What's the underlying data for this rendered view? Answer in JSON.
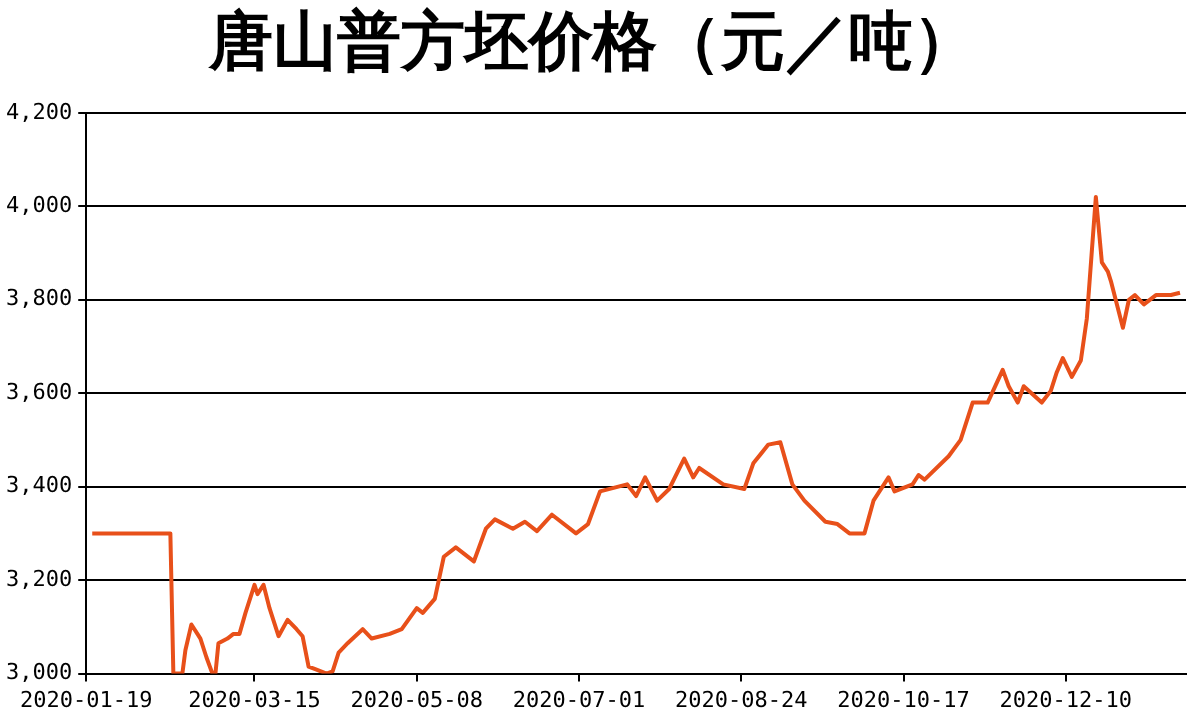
{
  "chart_data": {
    "type": "line",
    "title": "唐山普方坯价格（元／吨）",
    "x": [
      "2020-01-21",
      "2020-02-16",
      "2020-02-17",
      "2020-02-20",
      "2020-02-21",
      "2020-02-23",
      "2020-02-25",
      "2020-02-26",
      "2020-02-28",
      "2020-03-01",
      "2020-03-02",
      "2020-03-03",
      "2020-03-06",
      "2020-03-08",
      "2020-03-10",
      "2020-03-12",
      "2020-03-15",
      "2020-03-16",
      "2020-03-18",
      "2020-03-20",
      "2020-03-23",
      "2020-03-26",
      "2020-03-29",
      "2020-03-31",
      "2020-04-02",
      "2020-04-04",
      "2020-04-08",
      "2020-04-10",
      "2020-04-12",
      "2020-04-15",
      "2020-04-20",
      "2020-04-23",
      "2020-04-29",
      "2020-05-03",
      "2020-05-08",
      "2020-05-10",
      "2020-05-14",
      "2020-05-17",
      "2020-05-21",
      "2020-05-24",
      "2020-05-27",
      "2020-05-31",
      "2020-06-03",
      "2020-06-09",
      "2020-06-13",
      "2020-06-17",
      "2020-06-22",
      "2020-06-30",
      "2020-07-04",
      "2020-07-08",
      "2020-07-17",
      "2020-07-20",
      "2020-07-23",
      "2020-07-27",
      "2020-07-31",
      "2020-08-05",
      "2020-08-08",
      "2020-08-10",
      "2020-08-18",
      "2020-08-25",
      "2020-08-28",
      "2020-09-02",
      "2020-09-06",
      "2020-09-10",
      "2020-09-14",
      "2020-09-21",
      "2020-09-25",
      "2020-09-29",
      "2020-10-04",
      "2020-10-07",
      "2020-10-12",
      "2020-10-14",
      "2020-10-20",
      "2020-10-22",
      "2020-10-24",
      "2020-11-01",
      "2020-11-05",
      "2020-11-09",
      "2020-11-14",
      "2020-11-19",
      "2020-11-21",
      "2020-11-24",
      "2020-11-26",
      "2020-12-02",
      "2020-12-05",
      "2020-12-07",
      "2020-12-09",
      "2020-12-12",
      "2020-12-15",
      "2020-12-17",
      "2020-12-20",
      "2020-12-22",
      "2020-12-24",
      "2020-12-25",
      "2020-12-29",
      "2020-12-31",
      "2021-01-02",
      "2021-01-05",
      "2021-01-09",
      "2021-01-14",
      "2021-01-17"
    ],
    "series": [
      {
        "color": "#e8501a",
        "values": [
          3300,
          3300,
          3000,
          3000,
          3050,
          3105,
          3085,
          3075,
          3035,
          3000,
          3000,
          3065,
          3075,
          3085,
          3085,
          3130,
          3190,
          3170,
          3190,
          3140,
          3080,
          3115,
          3095,
          3080,
          3015,
          3010,
          3000,
          3005,
          3045,
          3065,
          3095,
          3075,
          3085,
          3095,
          3140,
          3130,
          3160,
          3250,
          3270,
          3255,
          3240,
          3310,
          3330,
          3310,
          3325,
          3305,
          3340,
          3300,
          3320,
          3390,
          3405,
          3380,
          3420,
          3370,
          3395,
          3460,
          3420,
          3440,
          3405,
          3395,
          3450,
          3490,
          3495,
          3405,
          3370,
          3325,
          3320,
          3300,
          3300,
          3370,
          3420,
          3390,
          3405,
          3425,
          3415,
          3465,
          3500,
          3580,
          3580,
          3650,
          3615,
          3580,
          3615,
          3580,
          3605,
          3645,
          3675,
          3635,
          3670,
          3760,
          4020,
          3880,
          3860,
          3840,
          3740,
          3800,
          3810,
          3790,
          3810,
          3810,
          3815
        ]
      }
    ],
    "xlim": [
      "2020-01-19",
      "2021-01-19"
    ],
    "xticks": [
      "2020-01-19",
      "2020-03-15",
      "2020-05-08",
      "2020-07-01",
      "2020-08-24",
      "2020-10-17",
      "2020-12-10"
    ],
    "ylim": [
      3000,
      4200
    ],
    "yticks": [
      {
        "value": 3000,
        "label": "3,000"
      },
      {
        "value": 3200,
        "label": "3,200"
      },
      {
        "value": 3400,
        "label": "3,400"
      },
      {
        "value": 3600,
        "label": "3,600"
      },
      {
        "value": 3800,
        "label": "3,800"
      },
      {
        "value": 4000,
        "label": "4,000"
      },
      {
        "value": 4200,
        "label": "4,200"
      }
    ],
    "grid": "y",
    "legend": false,
    "marker": "none",
    "line_style": "solid"
  }
}
